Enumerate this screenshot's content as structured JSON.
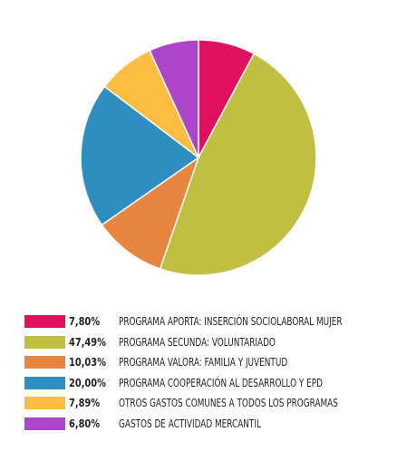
{
  "chart_data": {
    "type": "pie",
    "title": "",
    "legend_position": "bottom",
    "slices": [
      {
        "value": 7.8,
        "value_label": "7,80%",
        "label": "PROGRAMA APORTA:  INSERCIÓN SOCIOLABORAL MUJER",
        "color": "#e0105f"
      },
      {
        "value": 47.49,
        "value_label": "47,49%",
        "label": "PROGRAMA SECUNDA: VOLUNTARIADO",
        "color": "#c0bf42"
      },
      {
        "value": 10.03,
        "value_label": "10,03%",
        "label": "PROGRAMA VALORA: FAMILIA Y JUVENTUD",
        "color": "#e88541"
      },
      {
        "value": 20.0,
        "value_label": "20,00%",
        "label": "PROGRAMA COOPERACIÓN AL DESARROLLO Y EPD",
        "color": "#2f8ec0"
      },
      {
        "value": 7.89,
        "value_label": "7,89%",
        "label": "OTROS GASTOS COMUNES A TODOS LOS PROGRAMAS",
        "color": "#fdbd40"
      },
      {
        "value": 6.8,
        "value_label": "6,80%",
        "label": "GASTOS DE ACTIVIDAD MERCANTIL",
        "color": "#ad45c8"
      }
    ]
  }
}
